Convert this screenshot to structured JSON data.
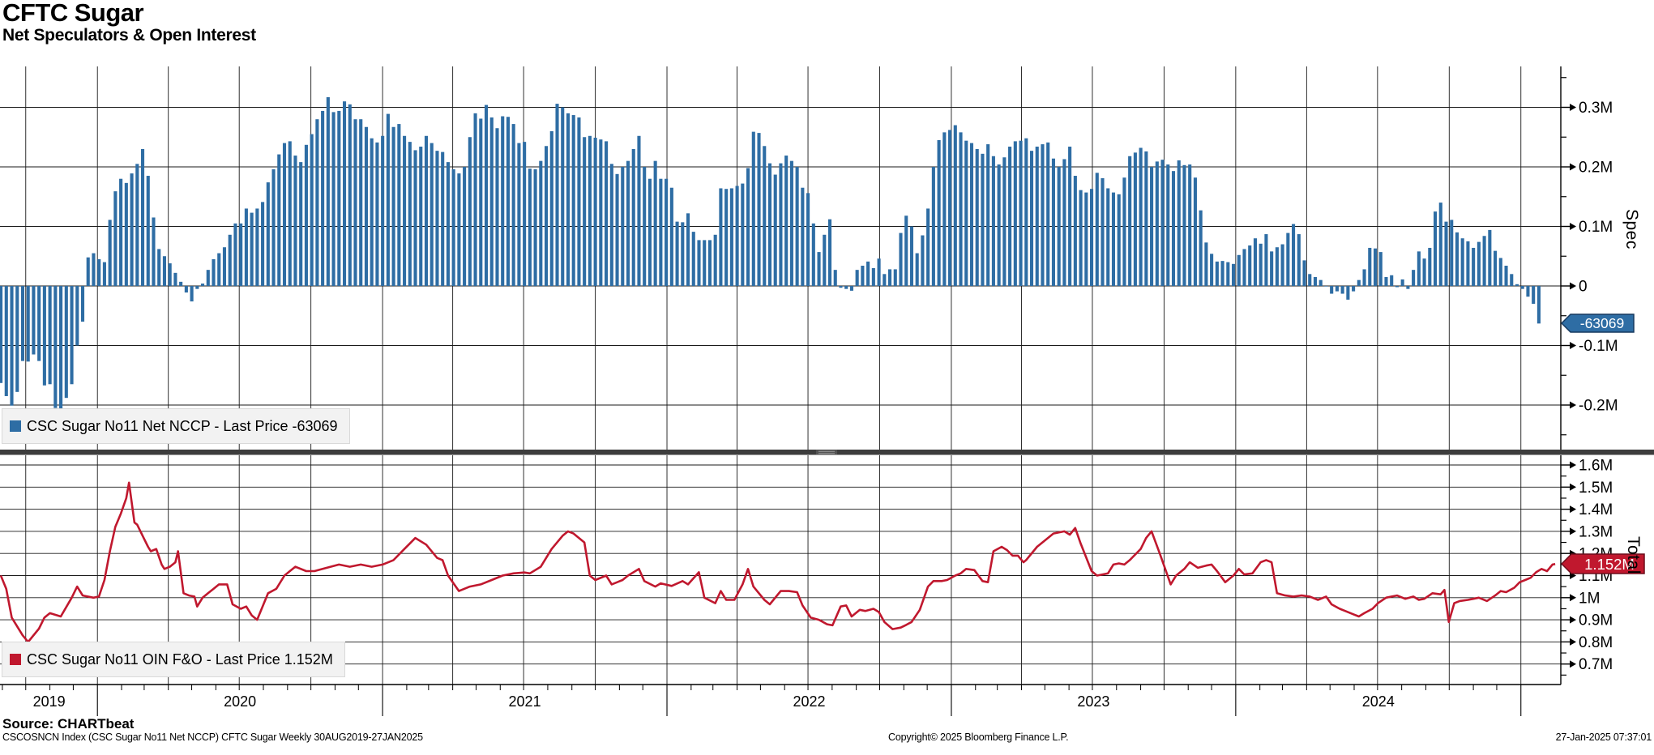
{
  "header": {
    "title": "CFTC Sugar",
    "subtitle": "Net Speculators & Open Interest"
  },
  "top_panel": {
    "legend_label": "CSC Sugar No11 Net NCCP - Last Price -63069",
    "axis_title": "Spec",
    "badge_label": "-63069",
    "tick_labels": [
      {
        "v": 0.3,
        "label": "0.3M"
      },
      {
        "v": 0.2,
        "label": "0.2M"
      },
      {
        "v": 0.1,
        "label": "0.1M"
      },
      {
        "v": 0.0,
        "label": "0"
      },
      {
        "v": -0.1,
        "label": "-0.1M"
      },
      {
        "v": -0.2,
        "label": "-0.2M"
      }
    ]
  },
  "bottom_panel": {
    "legend_label": "CSC Sugar No11 OIN F&O - Last Price 1.152M",
    "axis_title": "Total",
    "badge_label": "1.152M",
    "tick_labels": [
      {
        "v": 1.6,
        "label": "1.6M"
      },
      {
        "v": 1.5,
        "label": "1.5M"
      },
      {
        "v": 1.4,
        "label": "1.4M"
      },
      {
        "v": 1.3,
        "label": "1.3M"
      },
      {
        "v": 1.2,
        "label": "1.2M"
      },
      {
        "v": 1.1,
        "label": "1.1M"
      },
      {
        "v": 1.0,
        "label": "1M"
      },
      {
        "v": 0.9,
        "label": "0.9M"
      },
      {
        "v": 0.8,
        "label": "0.8M"
      },
      {
        "v": 0.7,
        "label": "0.7M"
      }
    ]
  },
  "x_axis": {
    "year_labels": [
      "2019",
      "2020",
      "2021",
      "2022",
      "2023",
      "2024"
    ]
  },
  "footer": {
    "source": "Source: CHARTbeat",
    "security_line": "CSCOSNCN Index (CSC Sugar No11 Net NCCP) CFTC Sugar  Weekly 30AUG2019-27JAN2025",
    "copyright": "Copyright© 2025 Bloomberg Finance L.P.",
    "timestamp": "27-Jan-2025 07:37:01"
  },
  "colors": {
    "bar_blue": "#2e6da4",
    "badge_blue_border": "#16395f",
    "line_red": "#c0182e",
    "badge_red_border": "#6d0d1c",
    "grid": "#1a1a1a",
    "legend_bg": "#f2f2f2",
    "separator": "#3d3d3d",
    "separator_grip": "#9a9a9a"
  },
  "chart_data": [
    {
      "type": "bar",
      "name": "CSC Sugar No11 Net NCCP",
      "legend": "CSC Sugar No11 Net NCCP - Last Price -63069",
      "unit": "M contracts (net speculator position)",
      "frequency": "weekly",
      "x_start": "30AUG2019",
      "x_end": "27JAN2025",
      "ylabel": "Spec",
      "ylim": [
        -0.25,
        0.345
      ],
      "last_price": -63069,
      "values": [
        -0.163,
        -0.185,
        -0.201,
        -0.178,
        -0.126,
        -0.127,
        -0.115,
        -0.126,
        -0.167,
        -0.165,
        -0.205,
        -0.206,
        -0.188,
        -0.165,
        -0.1,
        -0.06,
        0.048,
        0.055,
        0.045,
        0.04,
        0.111,
        0.159,
        0.18,
        0.173,
        0.189,
        0.205,
        0.23,
        0.185,
        0.115,
        0.062,
        0.05,
        0.038,
        0.022,
        0.007,
        -0.011,
        -0.026,
        -0.005,
        0.004,
        0.027,
        0.045,
        0.055,
        0.065,
        0.086,
        0.105,
        0.105,
        0.13,
        0.123,
        0.13,
        0.141,
        0.174,
        0.196,
        0.221,
        0.24,
        0.243,
        0.219,
        0.208,
        0.237,
        0.255,
        0.28,
        0.294,
        0.317,
        0.292,
        0.294,
        0.31,
        0.305,
        0.28,
        0.28,
        0.267,
        0.248,
        0.241,
        0.252,
        0.289,
        0.267,
        0.272,
        0.252,
        0.242,
        0.228,
        0.234,
        0.252,
        0.24,
        0.227,
        0.225,
        0.208,
        0.196,
        0.189,
        0.2,
        0.25,
        0.29,
        0.281,
        0.304,
        0.283,
        0.265,
        0.285,
        0.284,
        0.272,
        0.24,
        0.242,
        0.197,
        0.196,
        0.21,
        0.235,
        0.26,
        0.306,
        0.3,
        0.29,
        0.287,
        0.283,
        0.25,
        0.252,
        0.249,
        0.246,
        0.243,
        0.205,
        0.188,
        0.2,
        0.21,
        0.23,
        0.252,
        0.2,
        0.18,
        0.21,
        0.18,
        0.18,
        0.165,
        0.108,
        0.107,
        0.122,
        0.091,
        0.077,
        0.077,
        0.077,
        0.086,
        0.164,
        0.163,
        0.164,
        0.168,
        0.172,
        0.198,
        0.259,
        0.257,
        0.235,
        0.206,
        0.187,
        0.206,
        0.219,
        0.21,
        0.2,
        0.165,
        0.156,
        0.105,
        0.057,
        0.086,
        0.112,
        0.027,
        -0.003,
        -0.005,
        -0.008,
        0.027,
        0.034,
        0.041,
        0.03,
        0.046,
        0.02,
        0.028,
        0.028,
        0.089,
        0.118,
        0.1,
        0.055,
        0.085,
        0.13,
        0.2,
        0.245,
        0.258,
        0.262,
        0.27,
        0.258,
        0.244,
        0.24,
        0.23,
        0.222,
        0.238,
        0.218,
        0.204,
        0.216,
        0.234,
        0.243,
        0.244,
        0.248,
        0.227,
        0.234,
        0.238,
        0.241,
        0.214,
        0.2,
        0.213,
        0.234,
        0.185,
        0.161,
        0.157,
        0.163,
        0.19,
        0.181,
        0.164,
        0.157,
        0.154,
        0.182,
        0.218,
        0.224,
        0.232,
        0.226,
        0.2,
        0.209,
        0.212,
        0.204,
        0.193,
        0.211,
        0.203,
        0.204,
        0.182,
        0.127,
        0.073,
        0.054,
        0.041,
        0.042,
        0.04,
        0.037,
        0.052,
        0.062,
        0.068,
        0.08,
        0.071,
        0.087,
        0.058,
        0.065,
        0.07,
        0.089,
        0.104,
        0.087,
        0.043,
        0.02,
        0.015,
        0.01,
        0.0,
        -0.013,
        -0.009,
        -0.013,
        -0.023,
        -0.009,
        0.01,
        0.028,
        0.064,
        0.063,
        0.057,
        0.015,
        0.018,
        -0.002,
        0.011,
        -0.005,
        0.027,
        0.058,
        0.046,
        0.064,
        0.125,
        0.14,
        0.108,
        0.111,
        0.09,
        0.08,
        0.075,
        0.064,
        0.074,
        0.084,
        0.094,
        0.059,
        0.047,
        0.034,
        0.02,
        0.003,
        -0.005,
        -0.018,
        -0.03,
        -0.063069
      ]
    },
    {
      "type": "line",
      "name": "CSC Sugar No11 OIN F&O",
      "legend": "CSC Sugar No11 OIN F&O - Last Price 1.152M",
      "unit": "M contracts (total open interest)",
      "frequency": "weekly",
      "ylabel": "Total",
      "ylim": [
        0.66,
        1.64
      ],
      "last_price": "1.152M",
      "points": [
        [
          0,
          1.1
        ],
        [
          1,
          1.04
        ],
        [
          2,
          0.91
        ],
        [
          4,
          0.83
        ],
        [
          5,
          0.8
        ],
        [
          7,
          0.86
        ],
        [
          8,
          0.91
        ],
        [
          9,
          0.93
        ],
        [
          11,
          0.915
        ],
        [
          13,
          1.0
        ],
        [
          14,
          1.05
        ],
        [
          15,
          1.01
        ],
        [
          17,
          1.0
        ],
        [
          18,
          1.005
        ],
        [
          19,
          1.08
        ],
        [
          20,
          1.21
        ],
        [
          21,
          1.32
        ],
        [
          22,
          1.38
        ],
        [
          23,
          1.45
        ],
        [
          23.5,
          1.52
        ],
        [
          24.5,
          1.34
        ],
        [
          25,
          1.33
        ],
        [
          26,
          1.28
        ],
        [
          27,
          1.23
        ],
        [
          27.5,
          1.21
        ],
        [
          28.5,
          1.22
        ],
        [
          29.5,
          1.15
        ],
        [
          30,
          1.13
        ],
        [
          31,
          1.14
        ],
        [
          32,
          1.16
        ],
        [
          32.5,
          1.21
        ],
        [
          33.5,
          1.02
        ],
        [
          34.5,
          1.01
        ],
        [
          35.5,
          1.005
        ],
        [
          36,
          0.96
        ],
        [
          37,
          1.0
        ],
        [
          38,
          1.02
        ],
        [
          39,
          1.04
        ],
        [
          40,
          1.06
        ],
        [
          41.5,
          1.06
        ],
        [
          42.5,
          0.97
        ],
        [
          44,
          0.95
        ],
        [
          45,
          0.96
        ],
        [
          46,
          0.92
        ],
        [
          47,
          0.9
        ],
        [
          49,
          1.02
        ],
        [
          50.5,
          1.04
        ],
        [
          52,
          1.1
        ],
        [
          53,
          1.12
        ],
        [
          54,
          1.14
        ],
        [
          56,
          1.12
        ],
        [
          57.5,
          1.12
        ],
        [
          59,
          1.13
        ],
        [
          62,
          1.15
        ],
        [
          64,
          1.14
        ],
        [
          66,
          1.15
        ],
        [
          68,
          1.14
        ],
        [
          70,
          1.15
        ],
        [
          72,
          1.17
        ],
        [
          74,
          1.22
        ],
        [
          76,
          1.27
        ],
        [
          78,
          1.24
        ],
        [
          80,
          1.18
        ],
        [
          81,
          1.17
        ],
        [
          82,
          1.1
        ],
        [
          84,
          1.03
        ],
        [
          86,
          1.05
        ],
        [
          88,
          1.06
        ],
        [
          90,
          1.08
        ],
        [
          92,
          1.1
        ],
        [
          94,
          1.11
        ],
        [
          96,
          1.114
        ],
        [
          97,
          1.11
        ],
        [
          99,
          1.14
        ],
        [
          101,
          1.22
        ],
        [
          103,
          1.28
        ],
        [
          104,
          1.3
        ],
        [
          105,
          1.29
        ],
        [
          107,
          1.25
        ],
        [
          108,
          1.1
        ],
        [
          109,
          1.08
        ],
        [
          111,
          1.1
        ],
        [
          112,
          1.06
        ],
        [
          114,
          1.08
        ],
        [
          115,
          1.1
        ],
        [
          117,
          1.13
        ],
        [
          118,
          1.075
        ],
        [
          120,
          1.05
        ],
        [
          121,
          1.065
        ],
        [
          123,
          1.053
        ],
        [
          125,
          1.075
        ],
        [
          126,
          1.06
        ],
        [
          128,
          1.115
        ],
        [
          129,
          1.0
        ],
        [
          131,
          0.975
        ],
        [
          132,
          1.03
        ],
        [
          133,
          0.99
        ],
        [
          134.5,
          0.99
        ],
        [
          136,
          1.06
        ],
        [
          137,
          1.13
        ],
        [
          138,
          1.05
        ],
        [
          140,
          0.99
        ],
        [
          141,
          0.97
        ],
        [
          143,
          1.03
        ],
        [
          144.5,
          1.03
        ],
        [
          146,
          1.025
        ],
        [
          147,
          0.965
        ],
        [
          148.5,
          0.91
        ],
        [
          150,
          0.9
        ],
        [
          151.5,
          0.88
        ],
        [
          152.5,
          0.875
        ],
        [
          154,
          0.96
        ],
        [
          155,
          0.965
        ],
        [
          156,
          0.915
        ],
        [
          157.5,
          0.945
        ],
        [
          158.5,
          0.94
        ],
        [
          160,
          0.95
        ],
        [
          161,
          0.935
        ],
        [
          162,
          0.89
        ],
        [
          163.5,
          0.858
        ],
        [
          165,
          0.865
        ],
        [
          166,
          0.877
        ],
        [
          167,
          0.89
        ],
        [
          168.5,
          0.945
        ],
        [
          170,
          1.05
        ],
        [
          171,
          1.075
        ],
        [
          172.5,
          1.075
        ],
        [
          173.5,
          1.08
        ],
        [
          175,
          1.1
        ],
        [
          176,
          1.11
        ],
        [
          177,
          1.13
        ],
        [
          178.5,
          1.125
        ],
        [
          180,
          1.075
        ],
        [
          181,
          1.07
        ],
        [
          182,
          1.21
        ],
        [
          183.5,
          1.23
        ],
        [
          184.5,
          1.215
        ],
        [
          185.5,
          1.19
        ],
        [
          186.5,
          1.19
        ],
        [
          187.5,
          1.16
        ],
        [
          188,
          1.17
        ],
        [
          190,
          1.23
        ],
        [
          193,
          1.29
        ],
        [
          195,
          1.3
        ],
        [
          196,
          1.285
        ],
        [
          197,
          1.315
        ],
        [
          198,
          1.245
        ],
        [
          200,
          1.12
        ],
        [
          201,
          1.1
        ],
        [
          202,
          1.105
        ],
        [
          203,
          1.11
        ],
        [
          204,
          1.15
        ],
        [
          205,
          1.155
        ],
        [
          206,
          1.15
        ],
        [
          207,
          1.17
        ],
        [
          209,
          1.22
        ],
        [
          210,
          1.27
        ],
        [
          211,
          1.3
        ],
        [
          212.5,
          1.2
        ],
        [
          214.5,
          1.06
        ],
        [
          215.5,
          1.1
        ],
        [
          217,
          1.13
        ],
        [
          218,
          1.16
        ],
        [
          219.5,
          1.135
        ],
        [
          221,
          1.145
        ],
        [
          222,
          1.15
        ],
        [
          223,
          1.12
        ],
        [
          224.5,
          1.07
        ],
        [
          226,
          1.1
        ],
        [
          227,
          1.13
        ],
        [
          228,
          1.105
        ],
        [
          229.5,
          1.11
        ],
        [
          231,
          1.16
        ],
        [
          232,
          1.17
        ],
        [
          233,
          1.16
        ],
        [
          234,
          1.02
        ],
        [
          235.5,
          1.01
        ],
        [
          237,
          1.005
        ],
        [
          238.5,
          1.01
        ],
        [
          240,
          1.005
        ],
        [
          241.5,
          0.99
        ],
        [
          243,
          1.005
        ],
        [
          244,
          0.97
        ],
        [
          245.5,
          0.95
        ],
        [
          246.5,
          0.94
        ],
        [
          248,
          0.925
        ],
        [
          249,
          0.915
        ],
        [
          250,
          0.93
        ],
        [
          251.5,
          0.95
        ],
        [
          252.5,
          0.975
        ],
        [
          254,
          1.0
        ],
        [
          255,
          1.005
        ],
        [
          256,
          1.01
        ],
        [
          257.5,
          0.995
        ],
        [
          259,
          1.005
        ],
        [
          260,
          0.99
        ],
        [
          261,
          0.995
        ],
        [
          262.5,
          1.02
        ],
        [
          264,
          1.015
        ],
        [
          264.7,
          1.035
        ],
        [
          265.5,
          0.89
        ],
        [
          266.5,
          0.975
        ],
        [
          267.5,
          0.985
        ],
        [
          269,
          0.99
        ],
        [
          270,
          0.995
        ],
        [
          271,
          1.0
        ],
        [
          272.5,
          0.985
        ],
        [
          274,
          1.01
        ],
        [
          275,
          1.03
        ],
        [
          276,
          1.025
        ],
        [
          277.5,
          1.045
        ],
        [
          278.5,
          1.07
        ],
        [
          279.5,
          1.08
        ],
        [
          280.5,
          1.09
        ],
        [
          281.5,
          1.115
        ],
        [
          282.5,
          1.13
        ],
        [
          283.5,
          1.12
        ],
        [
          284.5,
          1.15
        ],
        [
          285,
          1.152
        ]
      ]
    }
  ]
}
